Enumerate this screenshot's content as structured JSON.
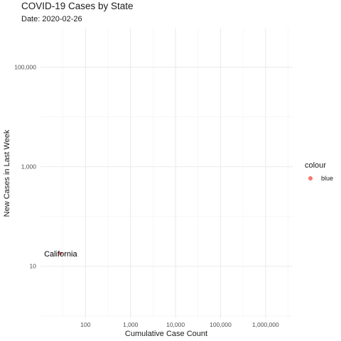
{
  "title": "COVID-19 Cases by State",
  "subtitle": "Date: 2020-02-26",
  "legend": {
    "title": "colour",
    "items": [
      {
        "label": "blue",
        "color": "#F8766D"
      }
    ]
  },
  "chart_data": {
    "type": "scatter",
    "x_scale": "log10",
    "y_scale": "log10",
    "xlabel": "Cumulative Case Count",
    "ylabel": "New Cases in Last Week",
    "xlim": [
      10,
      4000000
    ],
    "ylim": [
      0.9,
      600000
    ],
    "x_ticks": [
      {
        "value": 100,
        "label": "100"
      },
      {
        "value": 1000,
        "label": "1,000"
      },
      {
        "value": 10000,
        "label": "10,000"
      },
      {
        "value": 100000,
        "label": "100,000"
      },
      {
        "value": 1000000,
        "label": "1,000,000"
      }
    ],
    "y_ticks": [
      {
        "value": 10,
        "label": "10"
      },
      {
        "value": 1000,
        "label": "1,000"
      },
      {
        "value": 100000,
        "label": "100,000"
      }
    ],
    "grid": true,
    "legend_position": "right",
    "series": [
      {
        "name": "blue",
        "color": "#F8766D",
        "points": [
          {
            "x": 28,
            "y": 18,
            "label": "California"
          }
        ]
      }
    ]
  }
}
